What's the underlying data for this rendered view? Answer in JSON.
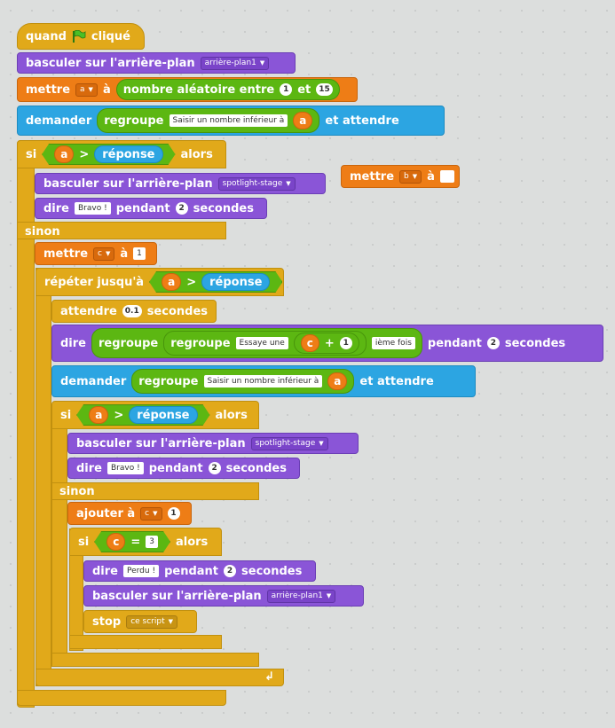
{
  "blocks": {
    "when_flag": {
      "prefix": "quand",
      "suffix": "cliqué"
    },
    "switch1": {
      "label": "basculer sur l'arrière-plan",
      "value": "arrière-plan1"
    },
    "set_a": {
      "label": "mettre",
      "var": "a",
      "to": "à",
      "op_label": "nombre aléatoire entre",
      "from": "1",
      "and": "et",
      "max": "15"
    },
    "ask1": {
      "label": "demander",
      "join": "regroupe",
      "text": "Saisir un nombre inférieur à",
      "var": "a",
      "wait": "et attendre"
    },
    "if1": {
      "label": "si",
      "var": "a",
      "op": ">",
      "answer": "réponse",
      "then": "alors"
    },
    "switch2": {
      "label": "basculer sur l'arrière-plan",
      "value": "spotlight-stage"
    },
    "say1": {
      "label": "dire",
      "text": "Bravo !",
      "for": "pendant",
      "secs": "2",
      "unit": "secondes"
    },
    "else1": {
      "label": "sinon"
    },
    "set_c": {
      "label": "mettre",
      "var": "c",
      "to": "à",
      "value": "1"
    },
    "repeat": {
      "label": "répéter jusqu'à",
      "var": "a",
      "op": ">",
      "answer": "réponse"
    },
    "wait": {
      "label": "attendre",
      "value": "0.1",
      "unit": "secondes"
    },
    "say2": {
      "label": "dire",
      "join1": "regroupe",
      "join2": "regroupe",
      "text": "Essaye une",
      "var": "c",
      "plus": "+",
      "num": "1",
      "suffix": "ième fois",
      "for": "pendant",
      "secs": "2",
      "unit": "secondes"
    },
    "ask2": {
      "label": "demander",
      "join": "regroupe",
      "text": "Saisir un nombre inférieur à",
      "var": "a",
      "wait": "et attendre"
    },
    "if2": {
      "label": "si",
      "var": "a",
      "op": ">",
      "answer": "réponse",
      "then": "alors"
    },
    "switch3": {
      "label": "basculer sur l'arrière-plan",
      "value": "spotlight-stage"
    },
    "say3": {
      "label": "dire",
      "text": "Bravo !",
      "for": "pendant",
      "secs": "2",
      "unit": "secondes"
    },
    "else2": {
      "label": "sinon"
    },
    "change_c": {
      "label": "ajouter à",
      "var": "c",
      "value": "1"
    },
    "if3": {
      "label": "si",
      "var": "c",
      "op": "=",
      "value": "3",
      "then": "alors"
    },
    "say4": {
      "label": "dire",
      "text": "Perdu !",
      "for": "pendant",
      "secs": "2",
      "unit": "secondes"
    },
    "switch4": {
      "label": "basculer sur l'arrière-plan",
      "value": "arrière-plan1"
    },
    "stop": {
      "label": "stop",
      "value": "ce script"
    },
    "loose_set": {
      "label": "mettre",
      "var": "b",
      "to": "à",
      "value": ""
    }
  },
  "colors": {
    "looks": "#8a55d7",
    "data": "#ee7d16",
    "control": "#e1a91a",
    "sensing": "#2ca5e2",
    "operators": "#5cb712",
    "background": "#dcdedd"
  },
  "icons": {
    "flag": "green-flag-icon",
    "loop_arrow": "loop-arrow-icon"
  }
}
